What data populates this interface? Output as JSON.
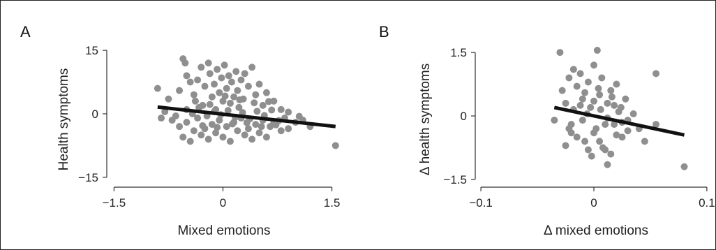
{
  "colors": {
    "points": "#8f8f8f",
    "fit_line": "#111111",
    "axis": "#333333"
  },
  "chart_data": [
    {
      "type": "scatter",
      "panel": "A",
      "title": "",
      "xlabel": "Mixed emotions",
      "ylabel": "Health symptoms",
      "xlim": [
        -1.6,
        1.6
      ],
      "ylim": [
        -16.5,
        16
      ],
      "xticks": [
        -1.5,
        0,
        1.5
      ],
      "xtick_labels": [
        "−1.5",
        "0",
        "1.5"
      ],
      "yticks": [
        15,
        0,
        -15
      ],
      "ytick_labels": [
        "15",
        "0",
        "−15"
      ],
      "grid": false,
      "fit_line": [
        [
          -0.9,
          1.6
        ],
        [
          1.55,
          -3.0
        ]
      ],
      "points": [
        [
          -0.9,
          6.0
        ],
        [
          -0.85,
          -1.0
        ],
        [
          -0.75,
          3.5
        ],
        [
          -0.6,
          5.5
        ],
        [
          -0.55,
          13.0
        ],
        [
          -0.52,
          12.0
        ],
        [
          -0.5,
          9.0
        ],
        [
          -0.45,
          7.5
        ],
        [
          -0.4,
          4.5
        ],
        [
          -0.35,
          8.0
        ],
        [
          -0.3,
          11.0
        ],
        [
          -0.28,
          2.0
        ],
        [
          -0.25,
          6.5
        ],
        [
          -0.2,
          12.0
        ],
        [
          -0.18,
          9.5
        ],
        [
          -0.15,
          4.0
        ],
        [
          -0.12,
          7.0
        ],
        [
          -0.1,
          1.0
        ],
        [
          -0.08,
          10.5
        ],
        [
          -0.05,
          5.0
        ],
        [
          -0.02,
          8.5
        ],
        [
          0.0,
          3.0
        ],
        [
          0.02,
          11.5
        ],
        [
          0.05,
          6.0
        ],
        [
          0.08,
          9.0
        ],
        [
          0.1,
          2.5
        ],
        [
          0.12,
          7.5
        ],
        [
          0.15,
          4.0
        ],
        [
          0.18,
          10.0
        ],
        [
          0.2,
          5.5
        ],
        [
          0.22,
          1.5
        ],
        [
          0.25,
          8.0
        ],
        [
          0.28,
          3.5
        ],
        [
          0.3,
          9.5
        ],
        [
          0.35,
          6.5
        ],
        [
          0.4,
          11.0
        ],
        [
          0.45,
          4.5
        ],
        [
          0.5,
          7.0
        ],
        [
          0.55,
          2.0
        ],
        [
          0.6,
          5.0
        ],
        [
          0.7,
          3.0
        ],
        [
          0.8,
          1.0
        ],
        [
          -0.7,
          -1.5
        ],
        [
          -0.6,
          -3.0
        ],
        [
          -0.55,
          -5.5
        ],
        [
          -0.5,
          -2.0
        ],
        [
          -0.45,
          -6.5
        ],
        [
          -0.4,
          -4.0
        ],
        [
          -0.35,
          -1.0
        ],
        [
          -0.3,
          -5.0
        ],
        [
          -0.25,
          -3.5
        ],
        [
          -0.2,
          -6.0
        ],
        [
          -0.15,
          -2.5
        ],
        [
          -0.1,
          -4.5
        ],
        [
          -0.05,
          -1.5
        ],
        [
          0.0,
          -5.5
        ],
        [
          0.05,
          -3.0
        ],
        [
          0.1,
          -6.5
        ],
        [
          0.15,
          -2.0
        ],
        [
          0.2,
          -4.0
        ],
        [
          0.25,
          -1.0
        ],
        [
          0.3,
          -5.0
        ],
        [
          0.35,
          -3.5
        ],
        [
          0.4,
          -6.0
        ],
        [
          0.45,
          -2.5
        ],
        [
          0.5,
          -4.5
        ],
        [
          0.55,
          -1.5
        ],
        [
          0.6,
          -5.5
        ],
        [
          0.65,
          -3.0
        ],
        [
          0.7,
          -2.0
        ],
        [
          0.8,
          -4.0
        ],
        [
          0.85,
          -1.0
        ],
        [
          0.9,
          -3.5
        ],
        [
          1.0,
          -2.0
        ],
        [
          1.1,
          -1.5
        ],
        [
          1.2,
          -3.0
        ],
        [
          1.55,
          -7.5
        ],
        [
          -0.8,
          0.5
        ],
        [
          -0.65,
          -0.5
        ],
        [
          -0.5,
          1.0
        ],
        [
          -0.42,
          0.0
        ],
        [
          -0.33,
          1.5
        ],
        [
          -0.22,
          -0.5
        ],
        [
          -0.12,
          0.5
        ],
        [
          -0.03,
          -0.2
        ],
        [
          0.07,
          0.8
        ],
        [
          0.17,
          -0.8
        ],
        [
          0.27,
          0.3
        ],
        [
          0.37,
          -1.2
        ],
        [
          0.47,
          0.6
        ],
        [
          0.57,
          -0.4
        ],
        [
          0.67,
          0.9
        ],
        [
          0.77,
          -1.6
        ],
        [
          0.9,
          0.4
        ],
        [
          1.05,
          -0.6
        ],
        [
          -0.38,
          3.0
        ],
        [
          -0.18,
          2.2
        ],
        [
          0.03,
          4.2
        ],
        [
          0.23,
          3.3
        ],
        [
          0.43,
          2.6
        ],
        [
          0.63,
          2.9
        ],
        [
          -0.28,
          -2.8
        ],
        [
          -0.08,
          -3.2
        ],
        [
          0.13,
          -2.4
        ],
        [
          0.33,
          -2.1
        ],
        [
          0.53,
          -3.0
        ],
        [
          0.73,
          -2.6
        ]
      ]
    },
    {
      "type": "scatter",
      "panel": "B",
      "title": "",
      "xlabel": "Δ mixed emotions",
      "ylabel": "Δ health symptoms",
      "xlim": [
        -0.105,
        0.105
      ],
      "ylim": [
        -1.6,
        1.65
      ],
      "xticks": [
        -0.1,
        0,
        0.1
      ],
      "xtick_labels": [
        "−0.1",
        "0",
        "0.1"
      ],
      "yticks": [
        1.5,
        0,
        -1.5
      ],
      "ytick_labels": [
        "1.5",
        "0",
        "−1.5"
      ],
      "grid": false,
      "fit_line": [
        [
          -0.035,
          0.2
        ],
        [
          0.08,
          -0.45
        ]
      ],
      "points": [
        [
          -0.035,
          -0.1
        ],
        [
          -0.03,
          1.5
        ],
        [
          -0.028,
          0.6
        ],
        [
          -0.025,
          0.3
        ],
        [
          -0.022,
          0.9
        ],
        [
          -0.02,
          -0.4
        ],
        [
          -0.018,
          1.1
        ],
        [
          -0.015,
          0.7
        ],
        [
          -0.012,
          1.0
        ],
        [
          -0.01,
          0.4
        ],
        [
          -0.008,
          -0.6
        ],
        [
          -0.005,
          0.8
        ],
        [
          -0.003,
          0.2
        ],
        [
          0.0,
          1.2
        ],
        [
          0.002,
          -0.3
        ],
        [
          0.003,
          1.55
        ],
        [
          0.005,
          0.5
        ],
        [
          0.007,
          0.9
        ],
        [
          0.01,
          -0.8
        ],
        [
          0.012,
          0.3
        ],
        [
          0.015,
          0.6
        ],
        [
          0.018,
          -0.2
        ],
        [
          0.02,
          0.75
        ],
        [
          0.022,
          0.1
        ],
        [
          0.025,
          -0.5
        ],
        [
          0.028,
          0.4
        ],
        [
          0.03,
          -0.1
        ],
        [
          0.035,
          0.05
        ],
        [
          0.04,
          -0.3
        ],
        [
          0.045,
          -0.6
        ],
        [
          0.055,
          1.0
        ],
        [
          0.055,
          -0.2
        ],
        [
          0.08,
          -1.2
        ],
        [
          0.012,
          -1.15
        ],
        [
          -0.025,
          -0.7
        ],
        [
          -0.02,
          -0.2
        ],
        [
          -0.015,
          -0.5
        ],
        [
          -0.01,
          -0.1
        ],
        [
          -0.005,
          -0.8
        ],
        [
          0.0,
          -0.4
        ],
        [
          0.005,
          -0.6
        ],
        [
          0.01,
          -0.2
        ],
        [
          0.015,
          -0.9
        ],
        [
          0.02,
          -0.45
        ],
        [
          0.025,
          -0.15
        ],
        [
          0.03,
          -0.35
        ],
        [
          -0.018,
          0.15
        ],
        [
          -0.012,
          0.25
        ],
        [
          -0.006,
          0.05
        ],
        [
          0.0,
          0.35
        ],
        [
          0.006,
          0.15
        ],
        [
          0.012,
          -0.05
        ],
        [
          0.018,
          0.25
        ],
        [
          0.024,
          0.2
        ],
        [
          -0.008,
          0.55
        ],
        [
          0.004,
          0.65
        ],
        [
          0.016,
          0.45
        ],
        [
          -0.022,
          -0.3
        ],
        [
          0.008,
          -0.75
        ],
        [
          -0.002,
          -0.95
        ]
      ]
    }
  ]
}
